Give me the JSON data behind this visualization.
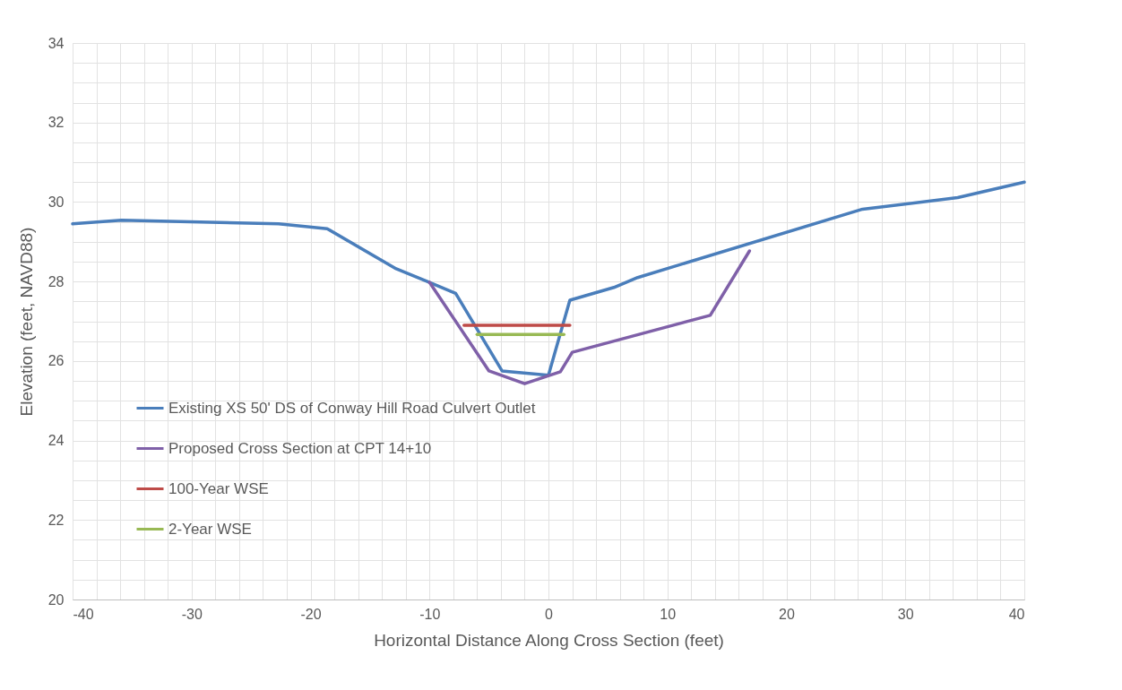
{
  "chart_data": {
    "type": "line",
    "xlabel": "Horizontal Distance Along Cross Section (feet)",
    "ylabel": "Elevation (feet, NAVD88)",
    "xlim": [
      -40,
      40
    ],
    "xticks": [
      -40,
      {
        "value": -38,
        "label": null
      },
      {
        "value": -36,
        "label": null
      },
      {
        "value": -34,
        "label": null
      },
      {
        "value": -32,
        "label": null
      },
      -30,
      {
        "value": -28,
        "label": null
      },
      {
        "value": -26,
        "label": null
      },
      {
        "value": -24,
        "label": null
      },
      {
        "value": -22,
        "label": null
      },
      -20,
      {
        "value": -18,
        "label": null
      },
      {
        "value": -16,
        "label": null
      },
      {
        "value": -14,
        "label": null
      },
      {
        "value": -12,
        "label": null
      },
      -10,
      {
        "value": -8,
        "label": null
      },
      {
        "value": -6,
        "label": null
      },
      {
        "value": -4,
        "label": null
      },
      {
        "value": -2,
        "label": null
      },
      0,
      {
        "value": 2,
        "label": null
      },
      {
        "value": 4,
        "label": null
      },
      {
        "value": 6,
        "label": null
      },
      {
        "value": 8,
        "label": null
      },
      10,
      {
        "value": 12,
        "label": null
      },
      {
        "value": 14,
        "label": null
      },
      {
        "value": 16,
        "label": null
      },
      {
        "value": 18,
        "label": null
      },
      20,
      {
        "value": 22,
        "label": null
      },
      {
        "value": 24,
        "label": null
      },
      {
        "value": 26,
        "label": null
      },
      {
        "value": 28,
        "label": null
      },
      30,
      {
        "value": 32,
        "label": null
      },
      {
        "value": 34,
        "label": null
      },
      {
        "value": 36,
        "label": null
      },
      {
        "value": 38,
        "label": null
      },
      40
    ],
    "ylim": [
      20,
      34
    ],
    "yticks": [
      20,
      {
        "value": 20.5,
        "label": null
      },
      {
        "value": 21,
        "label": null
      },
      {
        "value": 21.5,
        "label": null
      },
      22,
      {
        "value": 22.5,
        "label": null
      },
      {
        "value": 23,
        "label": null
      },
      {
        "value": 23.5,
        "label": null
      },
      24,
      {
        "value": 24.5,
        "label": null
      },
      {
        "value": 25,
        "label": null
      },
      {
        "value": 25.5,
        "label": null
      },
      26,
      {
        "value": 26.5,
        "label": null
      },
      {
        "value": 27,
        "label": null
      },
      {
        "value": 27.5,
        "label": null
      },
      28,
      {
        "value": 28.5,
        "label": null
      },
      {
        "value": 29,
        "label": null
      },
      {
        "value": 29.5,
        "label": null
      },
      30,
      {
        "value": 30.5,
        "label": null
      },
      {
        "value": 31,
        "label": null
      },
      {
        "value": 31.5,
        "label": null
      },
      32,
      {
        "value": 32.5,
        "label": null
      },
      {
        "value": 33,
        "label": null
      },
      {
        "value": 33.5,
        "label": null
      },
      34
    ],
    "grid": true,
    "legend": "bottom left",
    "marker": "none",
    "line_style": "solid",
    "series": [
      {
        "name": "Existing XS 50' DS of Conway Hill Road Culvert Outlet",
        "color": "#4a7ebb",
        "x": [
          -40,
          -35.9,
          -22.7,
          -18.6,
          -12.8,
          -10,
          -7.8,
          -3.9,
          0,
          1.8,
          5.5,
          7.5,
          26.4,
          34.4,
          40
        ],
        "values": [
          29.45,
          29.54,
          29.45,
          29.33,
          28.32,
          27.98,
          27.7,
          25.75,
          25.64,
          27.53,
          27.85,
          28.1,
          29.82,
          30.11,
          30.5
        ]
      },
      {
        "name": "Proposed Cross Section at CPT 14+10",
        "color": "#7f60a8",
        "x": [
          -10,
          -5,
          -2,
          1,
          2,
          13.6,
          16.9
        ],
        "values": [
          27.98,
          25.75,
          25.43,
          25.73,
          26.22,
          27.15,
          28.77
        ]
      },
      {
        "name": "100-Year WSE",
        "color": "#be4b48",
        "x": [
          -7.1,
          1.8
        ],
        "values": [
          26.9,
          26.9
        ]
      },
      {
        "name": "2-Year WSE",
        "color": "#98b954",
        "x": [
          -6,
          1.3
        ],
        "values": [
          26.67,
          26.67
        ]
      }
    ]
  }
}
